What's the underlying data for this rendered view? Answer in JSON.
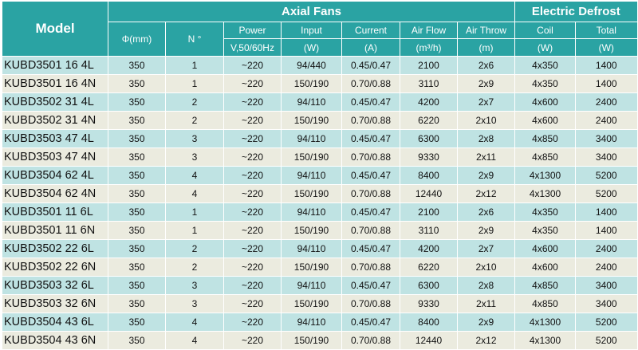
{
  "headers": {
    "model": "Model",
    "axial_fans": "Axial Fans",
    "electric_defrost": "Electric Defrost",
    "diameter": "Φ(mm)",
    "number": "N °",
    "power": "Power",
    "power_unit": "V,50/60Hz",
    "input": "Input",
    "input_unit": "(W)",
    "current": "Current",
    "current_unit": "(A)",
    "air_flow": "Air Flow",
    "air_flow_unit": "(m³/h)",
    "air_throw": "Air Throw",
    "air_throw_unit": "(m)",
    "coil": "Coil",
    "coil_unit": "(W)",
    "total": "Total",
    "total_unit": "(W)"
  },
  "rows": [
    {
      "model": "KUBD3501 16 4L",
      "diameter": "350",
      "number": "1",
      "power": "~220",
      "input": "94/440",
      "current": "0.45/0.47",
      "air_flow": "2100",
      "air_throw": "2x6",
      "coil": "4x350",
      "total": "1400"
    },
    {
      "model": "KUBD3501 16 4N",
      "diameter": "350",
      "number": "1",
      "power": "~220",
      "input": "150/190",
      "current": "0.70/0.88",
      "air_flow": "3110",
      "air_throw": "2x9",
      "coil": "4x350",
      "total": "1400"
    },
    {
      "model": "KUBD3502 31 4L",
      "diameter": "350",
      "number": "2",
      "power": "~220",
      "input": "94/110",
      "current": "0.45/0.47",
      "air_flow": "4200",
      "air_throw": "2x7",
      "coil": "4x600",
      "total": "2400"
    },
    {
      "model": "KUBD3502 31 4N",
      "diameter": "350",
      "number": "2",
      "power": "~220",
      "input": "150/190",
      "current": "0.70/0.88",
      "air_flow": "6220",
      "air_throw": "2x10",
      "coil": "4x600",
      "total": "2400"
    },
    {
      "model": "KUBD3503 47 4L",
      "diameter": "350",
      "number": "3",
      "power": "~220",
      "input": "94/110",
      "current": "0.45/0.47",
      "air_flow": "6300",
      "air_throw": "2x8",
      "coil": "4x850",
      "total": "3400"
    },
    {
      "model": "KUBD3503 47 4N",
      "diameter": "350",
      "number": "3",
      "power": "~220",
      "input": "150/190",
      "current": "0.70/0.88",
      "air_flow": "9330",
      "air_throw": "2x11",
      "coil": "4x850",
      "total": "3400"
    },
    {
      "model": "KUBD3504 62 4L",
      "diameter": "350",
      "number": "4",
      "power": "~220",
      "input": "94/110",
      "current": "0.45/0.47",
      "air_flow": "8400",
      "air_throw": "2x9",
      "coil": "4x1300",
      "total": "5200"
    },
    {
      "model": "KUBD3504 62 4N",
      "diameter": "350",
      "number": "4",
      "power": "~220",
      "input": "150/190",
      "current": "0.70/0.88",
      "air_flow": "12440",
      "air_throw": "2x12",
      "coil": "4x1300",
      "total": "5200"
    },
    {
      "model": "KUBD3501 11 6L",
      "diameter": "350",
      "number": "1",
      "power": "~220",
      "input": "94/110",
      "current": "0.45/0.47",
      "air_flow": "2100",
      "air_throw": "2x6",
      "coil": "4x350",
      "total": "1400"
    },
    {
      "model": "KUBD3501 11 6N",
      "diameter": "350",
      "number": "1",
      "power": "~220",
      "input": "150/190",
      "current": "0.70/0.88",
      "air_flow": "3110",
      "air_throw": "2x9",
      "coil": "4x350",
      "total": "1400"
    },
    {
      "model": "KUBD3502 22 6L",
      "diameter": "350",
      "number": "2",
      "power": "~220",
      "input": "94/110",
      "current": "0.45/0.47",
      "air_flow": "4200",
      "air_throw": "2x7",
      "coil": "4x600",
      "total": "2400"
    },
    {
      "model": "KUBD3502 22 6N",
      "diameter": "350",
      "number": "2",
      "power": "~220",
      "input": "150/190",
      "current": "0.70/0.88",
      "air_flow": "6220",
      "air_throw": "2x10",
      "coil": "4x600",
      "total": "2400"
    },
    {
      "model": "KUBD3503 32 6L",
      "diameter": "350",
      "number": "3",
      "power": "~220",
      "input": "94/110",
      "current": "0.45/0.47",
      "air_flow": "6300",
      "air_throw": "2x8",
      "coil": "4x850",
      "total": "3400"
    },
    {
      "model": "KUBD3503 32 6N",
      "diameter": "350",
      "number": "3",
      "power": "~220",
      "input": "150/190",
      "current": "0.70/0.88",
      "air_flow": "9330",
      "air_throw": "2x11",
      "coil": "4x850",
      "total": "3400"
    },
    {
      "model": "KUBD3504 43 6L",
      "diameter": "350",
      "number": "4",
      "power": "~220",
      "input": "94/110",
      "current": "0.45/0.47",
      "air_flow": "8400",
      "air_throw": "2x9",
      "coil": "4x1300",
      "total": "5200"
    },
    {
      "model": "KUBD3504 43 6N",
      "diameter": "350",
      "number": "4",
      "power": "~220",
      "input": "150/190",
      "current": "0.70/0.88",
      "air_flow": "12440",
      "air_throw": "2x12",
      "coil": "4x1300",
      "total": "5200"
    }
  ],
  "colors": {
    "header_bg": "#2aa3a3",
    "row_odd_bg": "#bfe3e3",
    "row_even_bg": "#ebebdf"
  }
}
